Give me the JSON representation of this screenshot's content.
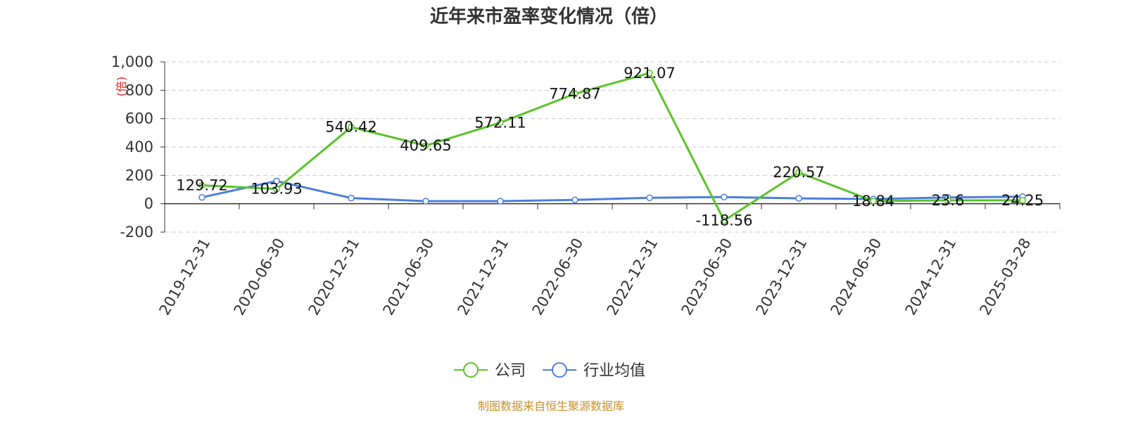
{
  "chart_data": {
    "type": "line",
    "title": "近年来市盈率变化情况（倍）",
    "ylabel": "(倍)",
    "xlabel": "",
    "categories": [
      "2019-12-31",
      "2020-06-30",
      "2020-12-31",
      "2021-06-30",
      "2021-12-31",
      "2022-06-30",
      "2022-12-31",
      "2023-06-30",
      "2023-12-31",
      "2024-06-30",
      "2024-12-31",
      "2025-03-28"
    ],
    "ylim": [
      -200,
      1000
    ],
    "yticks": [
      -200,
      0,
      200,
      400,
      600,
      800,
      1000
    ],
    "ytick_labels": [
      "-200",
      "0",
      "200",
      "400",
      "600",
      "800",
      "1,000"
    ],
    "grid": true,
    "legend_position": "bottom",
    "series": [
      {
        "name": "公司",
        "color": "#5cc22b",
        "values": [
          129.72,
          103.93,
          540.42,
          409.65,
          572.11,
          774.87,
          921.07,
          -118.56,
          220.57,
          18.84,
          23.6,
          24.25
        ],
        "labels": [
          "129.72",
          "103.93",
          "540.42",
          "409.65",
          "572.11",
          "774.87",
          "921.07",
          "-118.56",
          "220.57",
          "18.84",
          "23.6",
          "24.25"
        ]
      },
      {
        "name": "行业均值",
        "color": "#4a7fdc",
        "values": [
          45,
          160,
          40,
          18,
          18,
          27,
          42,
          47,
          38,
          33,
          44,
          50
        ]
      }
    ],
    "source": "制图数据来自恒生聚源数据库"
  }
}
